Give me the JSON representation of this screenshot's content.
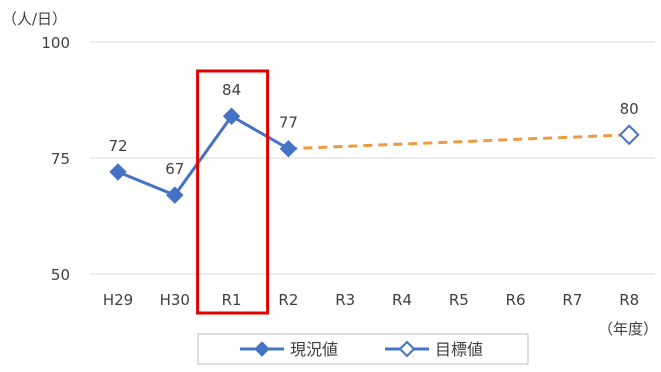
{
  "chart_data": {
    "type": "line",
    "y_unit_label": "（人/日）",
    "x_unit_label": "（年度）",
    "categories": [
      "H29",
      "H30",
      "R1",
      "R2",
      "R3",
      "R4",
      "R5",
      "R6",
      "R7",
      "R8"
    ],
    "ylim": [
      50,
      100
    ],
    "yticks": [
      50,
      75,
      100
    ],
    "grid": true,
    "legend_position": "bottom",
    "highlight_category": "R1",
    "series": [
      {
        "name": "現況値",
        "color": "#4472C4",
        "marker": "filled-diamond",
        "line_style": "solid",
        "points": [
          {
            "x": "H29",
            "y": 72
          },
          {
            "x": "H30",
            "y": 67
          },
          {
            "x": "R1",
            "y": 84
          },
          {
            "x": "R2",
            "y": 77
          }
        ]
      },
      {
        "name": "目標値",
        "color": "#4472C4",
        "marker": "hollow-diamond",
        "line_style": "none",
        "points": [
          {
            "x": "R8",
            "y": 80
          }
        ]
      }
    ],
    "trend_line": {
      "from": {
        "x": "R2",
        "y": 77
      },
      "to": {
        "x": "R8",
        "y": 80
      },
      "color": "#ED9B40",
      "style": "dashed"
    },
    "highlight_color": "#E00000"
  }
}
